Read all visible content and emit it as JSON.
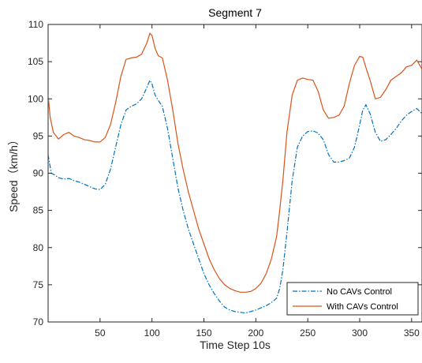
{
  "chart_data": {
    "type": "line",
    "title": "Segment 7",
    "xlabel": "Time Step 10s",
    "ylabel": "Speed（km/h）",
    "xlim": [
      0,
      360
    ],
    "ylim": [
      70,
      110
    ],
    "xticks": [
      50,
      100,
      150,
      200,
      250,
      300,
      350
    ],
    "yticks": [
      70,
      75,
      80,
      85,
      90,
      95,
      100,
      105,
      110
    ],
    "grid": false,
    "legend": "bottom-right",
    "series": [
      {
        "name": "No CAVs Control",
        "color": "#0072BD",
        "style": "dashdot",
        "x": [
          0,
          3,
          6,
          10,
          15,
          20,
          25,
          30,
          35,
          40,
          45,
          50,
          55,
          60,
          65,
          70,
          75,
          80,
          85,
          90,
          95,
          98,
          100,
          103,
          106,
          110,
          115,
          120,
          125,
          130,
          135,
          140,
          145,
          150,
          155,
          160,
          165,
          170,
          175,
          180,
          185,
          190,
          195,
          200,
          205,
          210,
          215,
          220,
          223,
          226,
          230,
          235,
          240,
          245,
          250,
          255,
          260,
          265,
          270,
          275,
          280,
          285,
          290,
          295,
          300,
          303,
          306,
          310,
          315,
          320,
          325,
          330,
          335,
          340,
          345,
          350,
          355,
          360
        ],
        "y": [
          92.5,
          90.0,
          89.8,
          89.4,
          89.2,
          89.3,
          89.0,
          88.8,
          88.5,
          88.2,
          87.9,
          87.8,
          88.5,
          90.5,
          93.5,
          96.5,
          98.5,
          99.0,
          99.3,
          100.0,
          101.5,
          102.5,
          102.0,
          100.5,
          99.8,
          99.0,
          96.0,
          92.0,
          88.0,
          85.0,
          82.5,
          80.5,
          78.5,
          76.5,
          75.0,
          73.8,
          72.8,
          72.0,
          71.6,
          71.4,
          71.3,
          71.2,
          71.4,
          71.6,
          71.9,
          72.2,
          72.6,
          73.2,
          74.5,
          77.0,
          82.0,
          89.0,
          93.5,
          95.0,
          95.6,
          95.7,
          95.4,
          94.5,
          92.5,
          91.5,
          91.5,
          91.7,
          92.0,
          93.5,
          96.5,
          98.5,
          99.2,
          98.0,
          95.5,
          94.3,
          94.5,
          95.2,
          96.0,
          97.0,
          97.8,
          98.3,
          98.7,
          98.0
        ]
      },
      {
        "name": "With CAVs Control",
        "color": "#D95319",
        "style": "solid",
        "x": [
          0,
          2,
          5,
          10,
          15,
          20,
          25,
          30,
          35,
          40,
          45,
          50,
          55,
          60,
          65,
          70,
          75,
          80,
          85,
          90,
          95,
          98,
          100,
          103,
          106,
          110,
          115,
          120,
          125,
          130,
          135,
          140,
          145,
          150,
          155,
          160,
          165,
          170,
          175,
          180,
          185,
          190,
          195,
          200,
          205,
          210,
          215,
          220,
          223,
          226,
          230,
          235,
          240,
          245,
          250,
          255,
          260,
          265,
          270,
          275,
          280,
          285,
          290,
          295,
          300,
          303,
          306,
          310,
          315,
          320,
          325,
          330,
          335,
          340,
          345,
          350,
          355,
          360
        ],
        "y": [
          100.5,
          97.5,
          95.5,
          94.6,
          95.2,
          95.5,
          95.0,
          94.8,
          94.5,
          94.4,
          94.2,
          94.2,
          94.8,
          96.5,
          99.5,
          103.0,
          105.3,
          105.5,
          105.6,
          106.0,
          107.5,
          108.8,
          108.5,
          106.8,
          105.8,
          105.5,
          102.5,
          98.5,
          94.0,
          90.5,
          87.5,
          85.0,
          82.5,
          80.5,
          78.5,
          77.0,
          75.8,
          75.0,
          74.5,
          74.2,
          74.0,
          74.0,
          74.1,
          74.5,
          75.2,
          76.5,
          78.5,
          81.5,
          85.0,
          89.0,
          95.5,
          100.5,
          102.5,
          102.8,
          102.6,
          102.5,
          101.0,
          98.5,
          97.4,
          97.5,
          97.8,
          99.0,
          102.0,
          104.5,
          105.7,
          105.6,
          104.2,
          102.5,
          100.0,
          100.2,
          101.2,
          102.5,
          103.0,
          103.5,
          104.3,
          104.5,
          105.2,
          104.0
        ]
      }
    ]
  }
}
